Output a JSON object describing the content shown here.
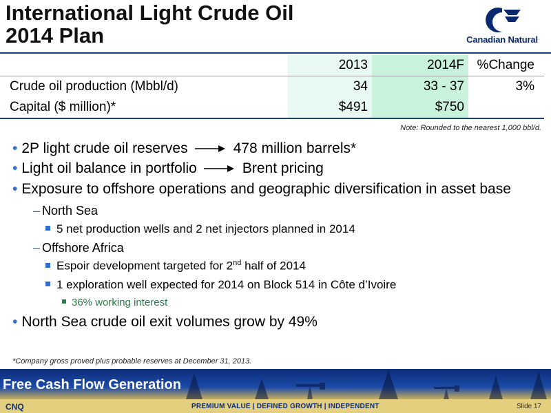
{
  "header": {
    "title_line1": "International Light Crude Oil",
    "title_line2": "2014 Plan",
    "logo_text": "Canadian Natural"
  },
  "table": {
    "columns": [
      "",
      "2013",
      "2014F",
      "%Change"
    ],
    "rows": [
      [
        "Crude oil production (Mbbl/d)",
        "34",
        "33 - 37",
        "3%"
      ],
      [
        "Capital ($ million)*",
        "$491",
        "$750",
        ""
      ]
    ],
    "note": "Note: Rounded to the nearest 1,000 bbl/d."
  },
  "bullets": {
    "b1_left": "2P light crude oil reserves",
    "b1_right": "478 million barrels*",
    "b2_left": "Light oil balance in portfolio",
    "b2_right": "Brent pricing",
    "b3": "Exposure to offshore operations and geographic diversification in asset base",
    "north_sea": "North Sea",
    "north_sea_detail": "5 net production wells and 2 net injectors planned in 2014",
    "offshore_africa": "Offshore Africa",
    "espoir_pre": "Espoir development targeted for 2",
    "espoir_sup": "nd",
    "espoir_post": " half of 2014",
    "exploration": "1 exploration well expected for 2014 on Block 514 in Côte d’Ivoire",
    "working_interest": "36% working interest",
    "b4": "North Sea crude oil exit volumes grow by 49%"
  },
  "footnote": "*Company gross proved plus probable reserves at December 31, 2013.",
  "banner": {
    "title": "Free Cash Flow Generation"
  },
  "footer": {
    "ticker": "CNQ",
    "tagline": "PREMIUM VALUE | DEFINED GROWTH | INDEPENDENT",
    "slide": "Slide 17"
  },
  "colors": {
    "accent": "#2f6fd1",
    "brand": "#0d2d78",
    "green": "#2a7a4a"
  }
}
